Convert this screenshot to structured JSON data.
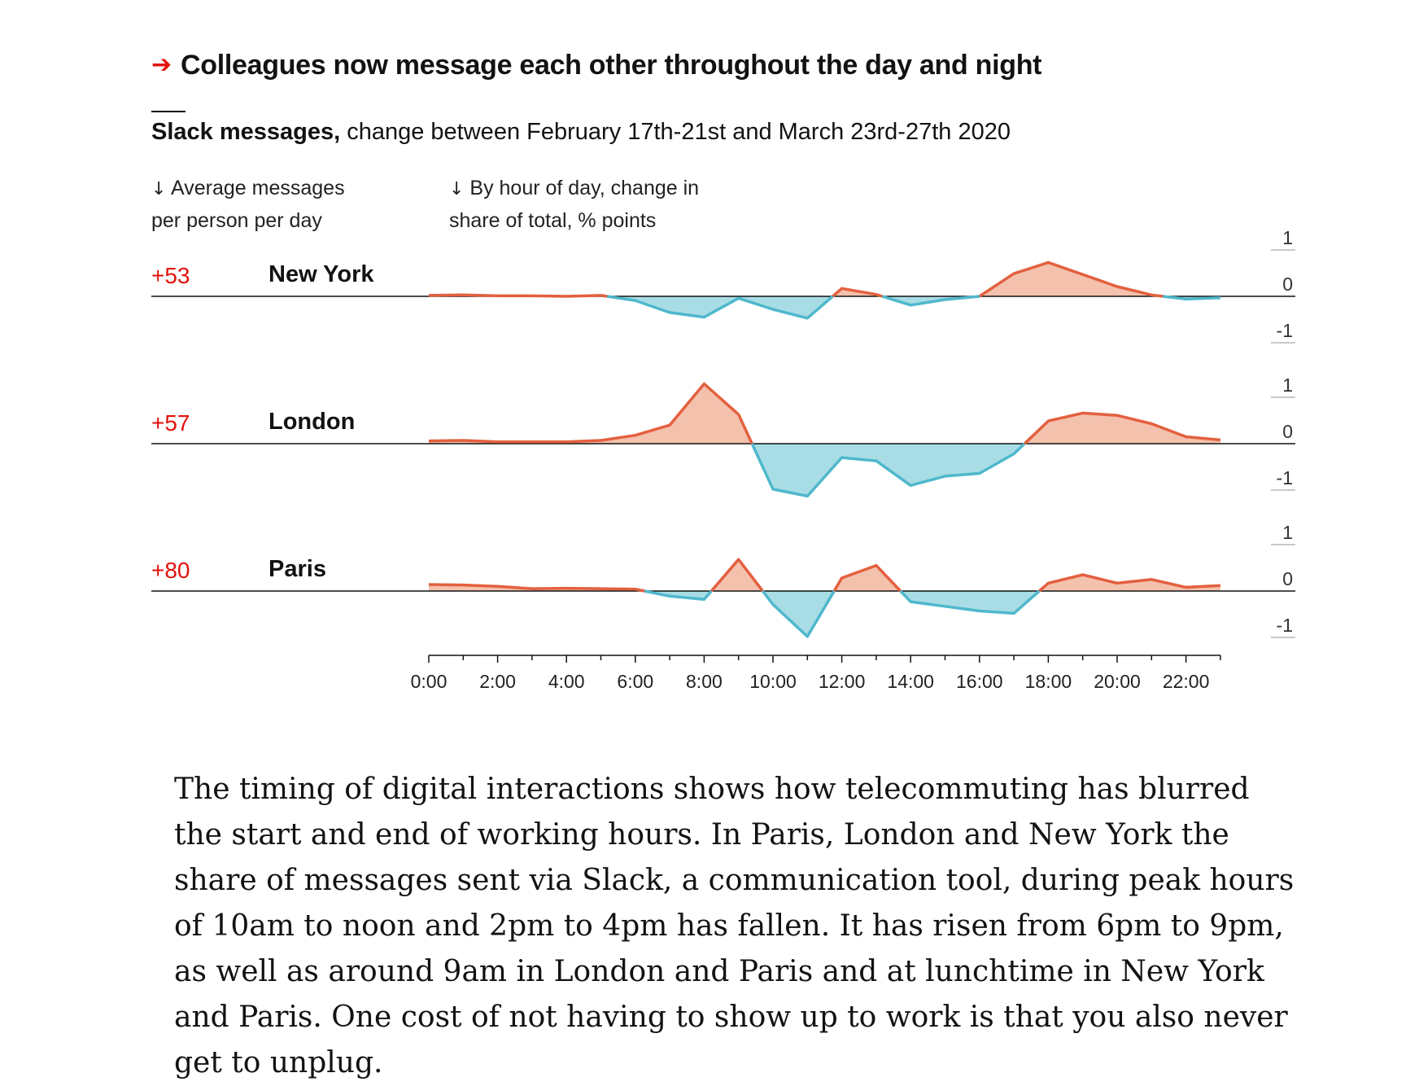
{
  "title": "Colleagues now message each other throughout the day and night",
  "subtitle_bold": "Slack messages,",
  "subtitle_rest": " change between February 17th-21st and March 23rd-27th 2020",
  "avg_header": {
    "arrow": "↓",
    "line1": "Average messages",
    "line2": "per person per day"
  },
  "hour_header": {
    "arrow": "↓",
    "line1": "By hour of day, change in",
    "line2": "share of total, % points"
  },
  "colors": {
    "positive_line": "#e3603f",
    "positive_fill": "#f4c1ad",
    "negative_line": "#4fb8cc",
    "negative_fill": "#a9dde6",
    "accent_red": "#e3120b",
    "axis": "#121212",
    "tick_rule": "#b0b8bd"
  },
  "chart_data": {
    "type": "area",
    "x": [
      "0:00",
      "1:00",
      "2:00",
      "3:00",
      "4:00",
      "5:00",
      "6:00",
      "7:00",
      "8:00",
      "9:00",
      "10:00",
      "11:00",
      "12:00",
      "13:00",
      "14:00",
      "15:00",
      "16:00",
      "17:00",
      "18:00",
      "19:00",
      "20:00",
      "21:00",
      "22:00",
      "23:00"
    ],
    "x_tick_labels": [
      "0:00",
      "2:00",
      "4:00",
      "6:00",
      "8:00",
      "10:00",
      "12:00",
      "14:00",
      "16:00",
      "18:00",
      "20:00",
      "22:00"
    ],
    "y_tick_labels": [
      "1",
      "0",
      "-1"
    ],
    "ylim": [
      -1,
      1
    ],
    "series": [
      {
        "name": "New York",
        "avg_change": "+53",
        "values": [
          0.02,
          0.03,
          0.01,
          0.01,
          0.0,
          0.02,
          -0.09,
          -0.35,
          -0.45,
          -0.04,
          -0.28,
          -0.47,
          0.17,
          0.04,
          -0.19,
          -0.07,
          0.0,
          0.49,
          0.73,
          0.47,
          0.21,
          0.03,
          -0.06,
          -0.03
        ]
      },
      {
        "name": "London",
        "avg_change": "+57",
        "values": [
          0.06,
          0.07,
          0.04,
          0.04,
          0.04,
          0.07,
          0.18,
          0.4,
          1.29,
          0.63,
          -0.98,
          -1.13,
          -0.3,
          -0.37,
          -0.9,
          -0.7,
          -0.64,
          -0.22,
          0.49,
          0.66,
          0.61,
          0.43,
          0.15,
          0.08
        ]
      },
      {
        "name": "Paris",
        "avg_change": "+80",
        "values": [
          0.14,
          0.13,
          0.1,
          0.05,
          0.06,
          0.05,
          0.04,
          -0.11,
          -0.18,
          0.68,
          -0.29,
          -0.98,
          0.28,
          0.55,
          -0.23,
          -0.33,
          -0.43,
          -0.48,
          0.17,
          0.35,
          0.17,
          0.25,
          0.08,
          0.12
        ]
      }
    ]
  },
  "body_text": "The timing of digital interactions shows how telecommuting has blurred the start and end of working hours. In Paris, London and New York the share of messages sent via Slack, a communication tool, during peak hours of 10am to noon and 2pm to 4pm has fallen. It has risen from 6pm to 9pm, as well as around 9am in London and Paris and at lunchtime in New York and Paris. One cost of not having to show up to work is that you also never get to unplug."
}
